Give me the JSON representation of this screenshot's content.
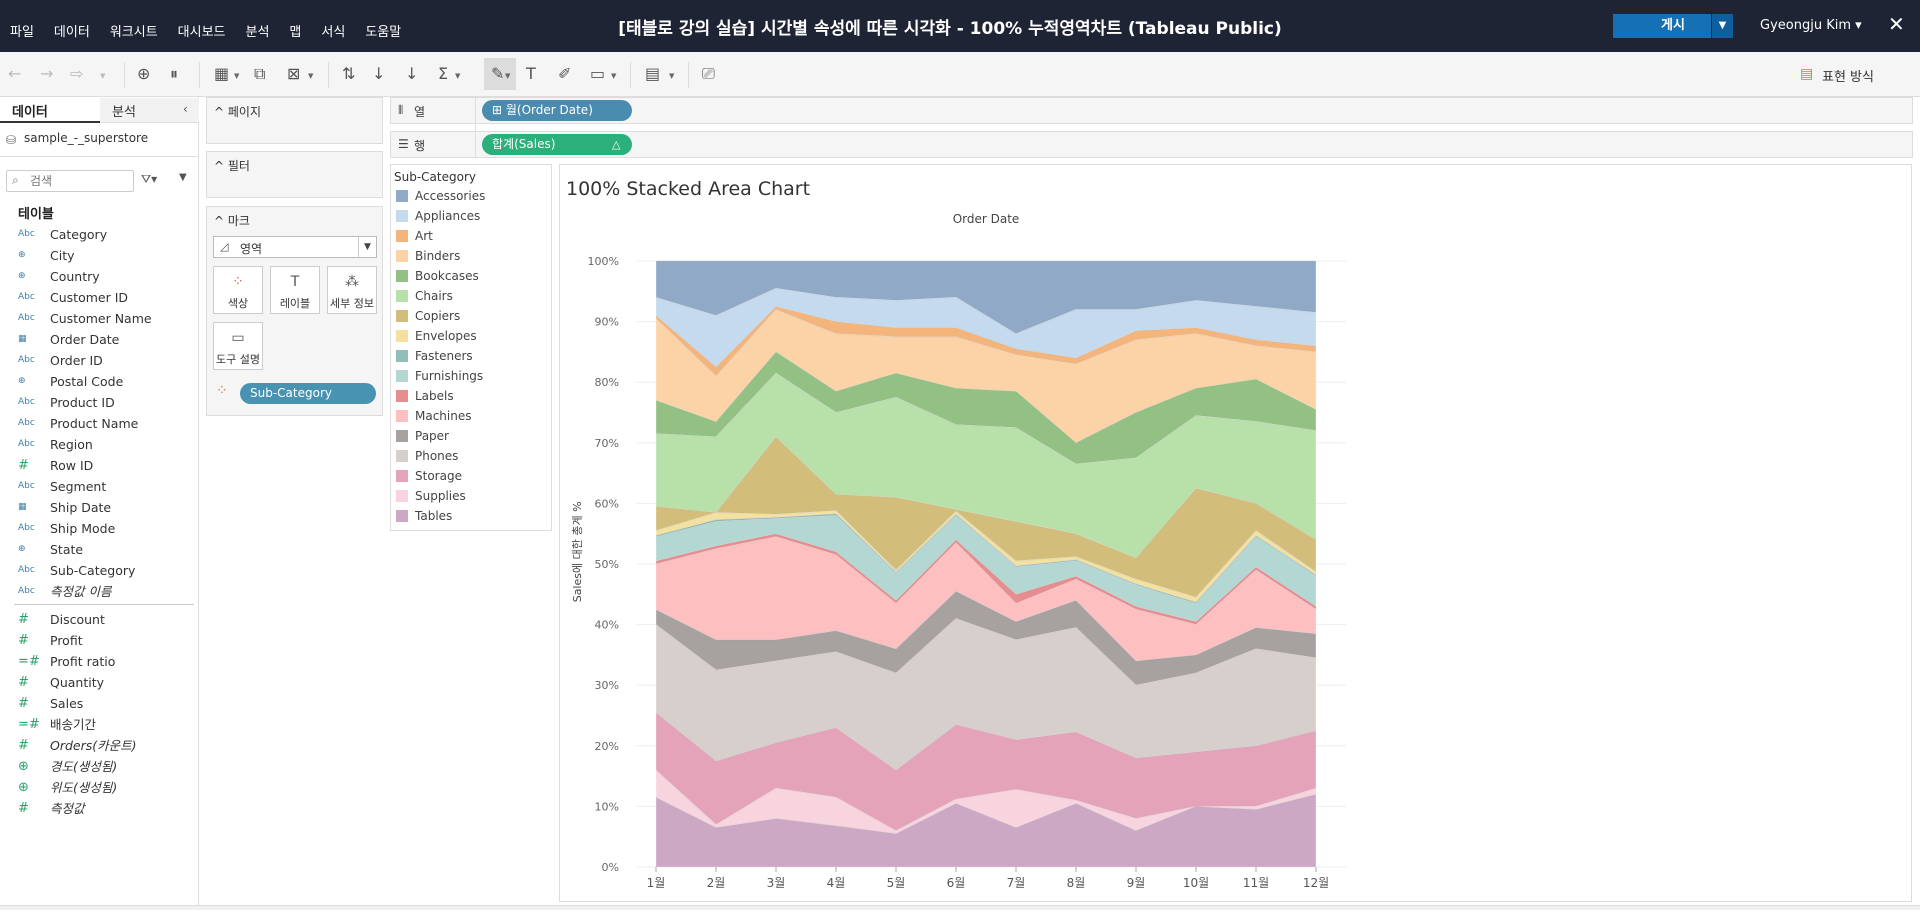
{
  "menu": [
    "파일",
    "데이터",
    "워크시트",
    "대시보드",
    "분석",
    "맵",
    "서식",
    "도움말"
  ],
  "window_title": "[태블로 강의 실습] 시간별 속성에 따른 시각화 - 100% 누적영역차트 (Tableau Public)",
  "publish_label": "게시",
  "user_name": "Gyeongju Kim ▾",
  "show_me_label": "표현 방식",
  "data_pane": {
    "tab_data": "데이터",
    "tab_analysis": "분석",
    "datasource": "sample_-_superstore",
    "search_placeholder": "검색",
    "tables_header": "테이블",
    "dimensions": [
      {
        "icon": "Abc",
        "label": "Category"
      },
      {
        "icon": "globe",
        "label": "City"
      },
      {
        "icon": "globe",
        "label": "Country"
      },
      {
        "icon": "Abc",
        "label": "Customer ID"
      },
      {
        "icon": "Abc",
        "label": "Customer Name"
      },
      {
        "icon": "calendar",
        "label": "Order Date"
      },
      {
        "icon": "Abc",
        "label": "Order ID"
      },
      {
        "icon": "globe",
        "label": "Postal Code"
      },
      {
        "icon": "Abc",
        "label": "Product ID"
      },
      {
        "icon": "Abc",
        "label": "Product Name"
      },
      {
        "icon": "Abc",
        "label": "Region"
      },
      {
        "icon": "#",
        "label": "Row ID"
      },
      {
        "icon": "Abc",
        "label": "Segment"
      },
      {
        "icon": "calendar",
        "label": "Ship Date"
      },
      {
        "icon": "Abc",
        "label": "Ship Mode"
      },
      {
        "icon": "globe",
        "label": "State"
      },
      {
        "icon": "Abc",
        "label": "Sub-Category"
      },
      {
        "icon": "Abc",
        "label": "측정값 이름",
        "italic": true
      }
    ],
    "measures": [
      {
        "icon": "#",
        "label": "Discount"
      },
      {
        "icon": "#",
        "label": "Profit"
      },
      {
        "icon": "=#",
        "label": "Profit ratio"
      },
      {
        "icon": "#",
        "label": "Quantity"
      },
      {
        "icon": "#",
        "label": "Sales"
      },
      {
        "icon": "=#",
        "label": "배송기간"
      },
      {
        "icon": "#",
        "label": "Orders(카운트)",
        "italic": true
      },
      {
        "icon": "globe",
        "label": "경도(생성됨)",
        "italic": true
      },
      {
        "icon": "globe",
        "label": "위도(생성됨)",
        "italic": true
      },
      {
        "icon": "#",
        "label": "측정값",
        "italic": true
      }
    ]
  },
  "cards": {
    "pages": "페이지",
    "filters": "필터",
    "marks": "마크",
    "mark_type": "영역",
    "mark_buttons": [
      "색상",
      "레이블",
      "세부 정보",
      "도구 설명"
    ],
    "color_pill": "Sub-Category"
  },
  "shelves": {
    "columns_label": "열",
    "rows_label": "행",
    "columns_pill": "월(Order Date)",
    "rows_pill": "합계(Sales)",
    "rows_pill_delta": "△"
  },
  "legend": {
    "title": "Sub-Category",
    "items": [
      {
        "label": "Accessories",
        "color": "#8fa9c6"
      },
      {
        "label": "Appliances",
        "color": "#c3daef"
      },
      {
        "label": "Art",
        "color": "#f3b57c"
      },
      {
        "label": "Binders",
        "color": "#fbd3a6"
      },
      {
        "label": "Bookcases",
        "color": "#92c183"
      },
      {
        "label": "Chairs",
        "color": "#b8e0a9"
      },
      {
        "label": "Copiers",
        "color": "#d2be7a"
      },
      {
        "label": "Envelopes",
        "color": "#f4e1a0"
      },
      {
        "label": "Fasteners",
        "color": "#8fbeb8"
      },
      {
        "label": "Furnishings",
        "color": "#b3d7d2"
      },
      {
        "label": "Labels",
        "color": "#e68d8f"
      },
      {
        "label": "Machines",
        "color": "#fdbfbf"
      },
      {
        "label": "Paper",
        "color": "#a7a2a0"
      },
      {
        "label": "Phones",
        "color": "#d6cfcc"
      },
      {
        "label": "Storage",
        "color": "#e5a3b9"
      },
      {
        "label": "Supplies",
        "color": "#f8d4df"
      },
      {
        "label": "Tables",
        "color": "#cda8c4"
      }
    ]
  },
  "chart_data": {
    "type": "area",
    "title": "100% Stacked Area Chart",
    "top_axis_title": "Order Date",
    "ylabel": "Sales에 대한 총계 %",
    "ylim": [
      0,
      100
    ],
    "yticks": [
      "0%",
      "10%",
      "20%",
      "30%",
      "40%",
      "50%",
      "60%",
      "70%",
      "80%",
      "90%",
      "100%"
    ],
    "categories": [
      "1월",
      "2월",
      "3월",
      "4월",
      "5월",
      "6월",
      "7월",
      "8월",
      "9월",
      "10월",
      "11월",
      "12월"
    ],
    "cumulative_top_percent": [
      {
        "name": "Tables",
        "values": [
          11.5,
          6.5,
          8,
          6.8,
          5.5,
          10.5,
          6.5,
          10.5,
          6,
          10,
          9.5,
          12
        ]
      },
      {
        "name": "Supplies",
        "values": [
          16,
          7,
          13,
          11.5,
          6,
          11.2,
          12.8,
          11,
          8,
          10,
          10,
          13
        ]
      },
      {
        "name": "Storage",
        "values": [
          25.5,
          17.5,
          20.5,
          23,
          16,
          23.5,
          21,
          22.3,
          18,
          19,
          20,
          22.5
        ]
      },
      {
        "name": "Phones",
        "values": [
          40,
          32.5,
          34,
          35.5,
          32,
          41,
          37.5,
          39.5,
          30,
          32,
          36,
          34.5
        ]
      },
      {
        "name": "Paper",
        "values": [
          42.5,
          37.5,
          37.5,
          39,
          36,
          45.5,
          40.5,
          44,
          34,
          35,
          39.5,
          38.5
        ]
      },
      {
        "name": "Machines",
        "values": [
          50,
          52.5,
          54.5,
          51.5,
          43.5,
          53.5,
          43.5,
          47.5,
          42.5,
          40,
          49,
          42.5
        ]
      },
      {
        "name": "Labels",
        "values": [
          50.5,
          53,
          55,
          52,
          44,
          54,
          45,
          48,
          43,
          40.5,
          49.5,
          43
        ]
      },
      {
        "name": "Furnishings",
        "values": [
          54.5,
          57,
          57.5,
          58,
          48.5,
          58,
          49.5,
          50.5,
          46.5,
          43.5,
          54.5,
          48
        ]
      },
      {
        "name": "Fasteners",
        "values": [
          54.7,
          57.3,
          57.7,
          58.3,
          48.7,
          58.2,
          49.7,
          50.7,
          46.7,
          43.7,
          54.7,
          48.2
        ]
      },
      {
        "name": "Envelopes",
        "values": [
          55.5,
          58.5,
          58.2,
          58.8,
          49,
          58.7,
          50.5,
          51.2,
          47.5,
          44.5,
          55.5,
          48.7
        ]
      },
      {
        "name": "Copiers",
        "values": [
          59.5,
          58.5,
          71,
          61.5,
          61,
          59,
          57,
          55,
          51,
          62.5,
          60,
          54
        ]
      },
      {
        "name": "Chairs",
        "values": [
          71.5,
          71,
          81.5,
          75,
          77.5,
          73,
          72.5,
          66.5,
          67.5,
          74.5,
          73.5,
          72
        ]
      },
      {
        "name": "Bookcases",
        "values": [
          77,
          73.5,
          85,
          78.5,
          81.5,
          79,
          78.5,
          70,
          75,
          79,
          80.5,
          75.5
        ]
      },
      {
        "name": "Binders",
        "values": [
          90.5,
          81,
          92,
          88,
          87.5,
          87.5,
          84.5,
          83,
          87,
          88,
          86,
          85
        ]
      },
      {
        "name": "Art",
        "values": [
          91,
          82.5,
          92.5,
          90,
          89,
          89,
          85.5,
          84,
          88.5,
          89,
          87,
          86
        ]
      },
      {
        "name": "Appliances",
        "values": [
          94,
          91,
          95.5,
          94,
          93.5,
          94,
          88,
          92,
          92,
          93.5,
          92.5,
          91.5
        ]
      },
      {
        "name": "Accessories",
        "values": [
          100,
          100,
          100,
          100,
          100,
          100,
          100,
          100,
          100,
          100,
          100,
          100
        ]
      }
    ],
    "grid": true,
    "legend_position": "left"
  }
}
